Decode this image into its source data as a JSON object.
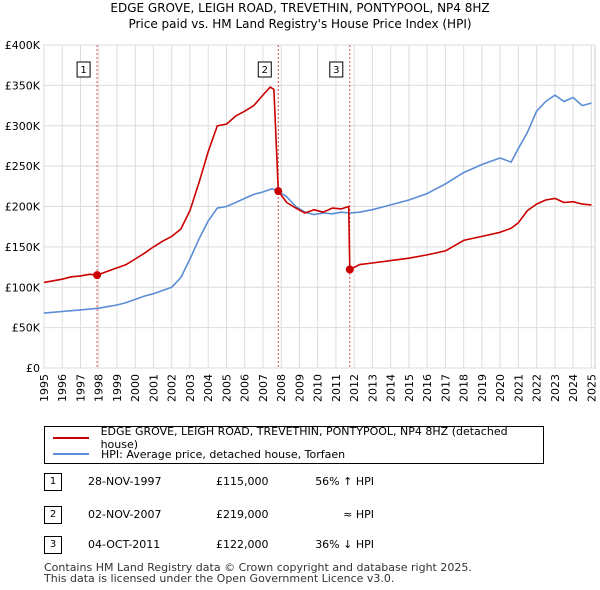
{
  "chart_data": {
    "type": "line",
    "title": "EDGE GROVE, LEIGH ROAD, TREVETHIN, PONTYPOOL, NP4 8HZ",
    "subtitle": "Price paid vs. HM Land Registry's House Price Index (HPI)",
    "xlabel": "",
    "ylabel": "",
    "xlim": [
      1995,
      2025.2
    ],
    "ylim": [
      0,
      400000
    ],
    "y_ticks": [
      0,
      50000,
      100000,
      150000,
      200000,
      250000,
      300000,
      350000,
      400000
    ],
    "y_tick_labels": [
      "£0",
      "£50K",
      "£100K",
      "£150K",
      "£200K",
      "£250K",
      "£300K",
      "£350K",
      "£400K"
    ],
    "x_ticks": [
      1995,
      1996,
      1997,
      1998,
      1999,
      2000,
      2001,
      2002,
      2003,
      2004,
      2005,
      2006,
      2007,
      2008,
      2009,
      2010,
      2011,
      2012,
      2013,
      2014,
      2015,
      2016,
      2017,
      2018,
      2019,
      2020,
      2021,
      2022,
      2023,
      2024,
      2025
    ],
    "x_tick_labels": [
      "1995",
      "1996",
      "1997",
      "1998",
      "1999",
      "2000",
      "2001",
      "2002",
      "2003",
      "2004",
      "2005",
      "2006",
      "2007",
      "2008",
      "2009",
      "2010",
      "2011",
      "2012",
      "2013",
      "2014",
      "2015",
      "2016",
      "2017",
      "2018",
      "2019",
      "2020",
      "2021",
      "2022",
      "2023",
      "2024",
      "2025"
    ],
    "grid": true,
    "series": [
      {
        "name": "EDGE GROVE, LEIGH ROAD, TREVETHIN, PONTYPOOL, NP4 8HZ (detached house)",
        "color": "#cc0000",
        "x": [
          1995.0,
          1995.5,
          1996.0,
          1996.5,
          1997.0,
          1997.5,
          1997.91,
          1998.5,
          1999.0,
          1999.5,
          2000.0,
          2000.5,
          2001.0,
          2001.5,
          2002.0,
          2002.5,
          2003.0,
          2003.5,
          2004.0,
          2004.5,
          2005.0,
          2005.5,
          2006.0,
          2006.5,
          2007.0,
          2007.4,
          2007.6,
          2007.84,
          2008.3,
          2008.8,
          2009.3,
          2009.8,
          2010.3,
          2010.8,
          2011.3,
          2011.7,
          2011.76,
          2012.3,
          2013.0,
          2014.0,
          2015.0,
          2016.0,
          2017.0,
          2018.0,
          2019.0,
          2020.0,
          2020.6,
          2021.0,
          2021.5,
          2022.0,
          2022.5,
          2023.0,
          2023.5,
          2024.0,
          2024.5,
          2025.0
        ],
        "y": [
          106000,
          108000,
          110000,
          113000,
          114000,
          116000,
          115000,
          120000,
          124000,
          128000,
          135000,
          142000,
          150000,
          157000,
          163000,
          172000,
          195000,
          230000,
          268000,
          300000,
          302000,
          312000,
          318000,
          325000,
          338000,
          348000,
          345000,
          219000,
          205000,
          198000,
          192000,
          196000,
          193000,
          198000,
          197000,
          200000,
          122000,
          128000,
          130000,
          133000,
          136000,
          140000,
          145000,
          158000,
          163000,
          168000,
          173000,
          180000,
          195000,
          203000,
          208000,
          210000,
          205000,
          206000,
          203000,
          202000
        ]
      },
      {
        "name": "HPI: Average price, detached house, Torfaen",
        "color": "#5b8dd6",
        "x": [
          1995.0,
          1995.5,
          1996.0,
          1996.5,
          1997.0,
          1997.5,
          1998.0,
          1998.5,
          1999.0,
          1999.5,
          2000.0,
          2000.5,
          2001.0,
          2001.5,
          2002.0,
          2002.5,
          2003.0,
          2003.5,
          2004.0,
          2004.5,
          2005.0,
          2005.5,
          2006.0,
          2006.5,
          2007.0,
          2007.5,
          2007.84,
          2008.3,
          2008.8,
          2009.3,
          2009.8,
          2010.3,
          2010.8,
          2011.3,
          2011.76,
          2012.3,
          2013.0,
          2014.0,
          2015.0,
          2016.0,
          2017.0,
          2018.0,
          2019.0,
          2020.0,
          2020.6,
          2021.0,
          2021.5,
          2022.0,
          2022.5,
          2023.0,
          2023.5,
          2024.0,
          2024.5,
          2025.0
        ],
        "y": [
          68000,
          69000,
          70000,
          71000,
          72000,
          73000,
          74000,
          76000,
          78000,
          81000,
          85000,
          89000,
          92000,
          96000,
          100000,
          112000,
          135000,
          160000,
          182000,
          198000,
          200000,
          205000,
          210000,
          215000,
          218000,
          222000,
          219000,
          212000,
          200000,
          193000,
          190000,
          192000,
          191000,
          193000,
          192000,
          193000,
          196000,
          202000,
          208000,
          216000,
          228000,
          242000,
          252000,
          260000,
          255000,
          272000,
          292000,
          318000,
          330000,
          338000,
          330000,
          335000,
          325000,
          328000
        ]
      }
    ],
    "sale_markers": [
      {
        "label": "1",
        "x": 1997.91,
        "y": 115000
      },
      {
        "label": "2",
        "x": 2007.84,
        "y": 219000
      },
      {
        "label": "3",
        "x": 2011.76,
        "y": 122000
      }
    ]
  },
  "legend": {
    "property_label": "EDGE GROVE, LEIGH ROAD, TREVETHIN, PONTYPOOL, NP4 8HZ (detached house)",
    "hpi_label": "HPI: Average price, detached house, Torfaen",
    "property_color": "#cc0000",
    "hpi_color": "#5b8dd6"
  },
  "sales": [
    {
      "num": "1",
      "date": "28-NOV-1997",
      "price": "£115,000",
      "hpi": "56% ↑ HPI"
    },
    {
      "num": "2",
      "date": "02-NOV-2007",
      "price": "£219,000",
      "hpi": "≈ HPI"
    },
    {
      "num": "3",
      "date": "04-OCT-2011",
      "price": "£122,000",
      "hpi": "36% ↓ HPI"
    }
  ],
  "footer": {
    "line1": "Contains HM Land Registry data © Crown copyright and database right 2025.",
    "line2": "This data is licensed under the Open Government Licence v3.0."
  }
}
